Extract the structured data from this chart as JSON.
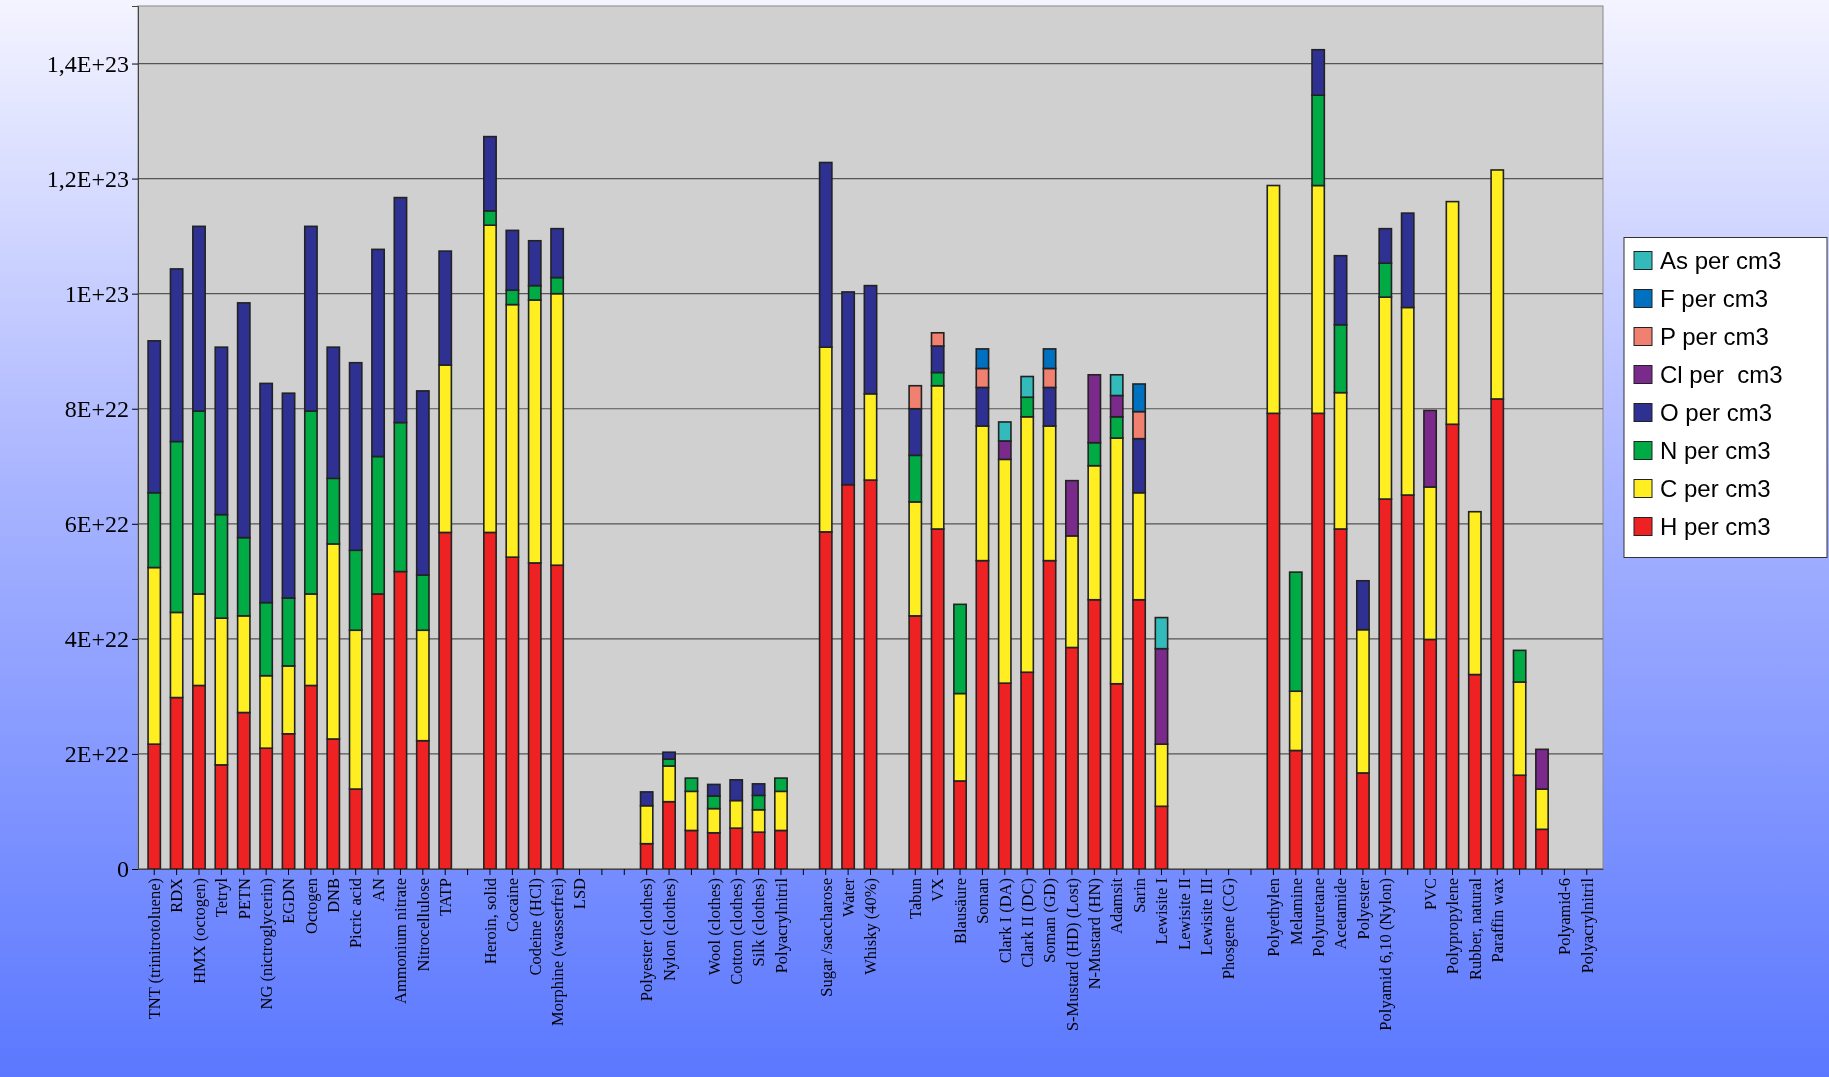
{
  "chart_data": {
    "type": "bar",
    "stacked": true,
    "grid": "y",
    "legend": "right",
    "categories": [
      "TNT (trinitrotoluene)",
      "RDX",
      "HMX (octogen)",
      "Tetryl",
      "PETN",
      "NG (nictroglycerin)",
      "EGDN",
      "Octogen",
      "DNB",
      "Picric acid",
      "AN",
      "Ammonium nitrate",
      "Nitrocellulose",
      "TATP",
      null,
      "Heroin, solid",
      "Cocaine",
      "Codeine (HCl)",
      "Morphine (wasserfrei)",
      "LSD",
      null,
      null,
      "Polyester (clothes)",
      "Nylon (clothes)",
      null,
      "Wool (clothes)",
      "Cotton (clothes)",
      "Silk (clothes)",
      "Polyacrylnitril",
      null,
      "Sugar /saccharose",
      "Water",
      "Whisky (40%)",
      null,
      "Tabun",
      "VX",
      "Blausäure",
      "Soman",
      "Clark I (DA)",
      "Clark II (DC)",
      "Soman (GD)",
      "S-Mustard (HD) (Lost)",
      "N-Mustard (HN)",
      "Adamsit",
      "Sarin",
      "Lewisite I",
      "Lewisite II",
      "Lewisite III",
      "Phosgene (CG)",
      null,
      "Polyethylen",
      "Melamine",
      "Polyuretane",
      "Acetamide",
      "Polyester",
      "Polyamid 6,10 (Nylon)",
      null,
      "PVC",
      "Polypropylene",
      "Rubber, natural",
      "Paraffin wax",
      null,
      null,
      "Polyamid-6",
      "Polyacrylnitril"
    ],
    "ylim": [
      0,
      1.5e+23
    ],
    "yticks": [
      0,
      {
        "value": 2e+22,
        "label": "2E+22"
      },
      {
        "value": 4e+22,
        "label": "4E+22"
      },
      {
        "value": 6e+22,
        "label": "6E+22"
      },
      {
        "value": 8e+22,
        "label": "8E+22"
      },
      {
        "value": 1e+23,
        "label": "1E+23"
      },
      {
        "value": 1.2e+23,
        "label": "1,2E+23"
      },
      {
        "value": 1.4e+23,
        "label": "1,4E+23"
      }
    ],
    "series": [
      {
        "name": "H per cm3",
        "color": "#ee2222",
        "values": [
          2.17e+22,
          2.98e+22,
          3.19e+22,
          1.81e+22,
          2.72e+22,
          2.1e+22,
          2.35e+22,
          3.19e+22,
          2.26e+22,
          1.39e+22,
          4.78e+22,
          5.17e+22,
          2.23e+22,
          5.85e+22,
          null,
          5.85e+22,
          5.42e+22,
          5.32e+22,
          5.28e+22,
          null,
          null,
          null,
          4.4e+21,
          1.17e+22,
          6.7e+21,
          6.3e+21,
          7.1e+21,
          6.4e+21,
          6.7e+21,
          null,
          5.86e+22,
          6.68e+22,
          6.76e+22,
          null,
          4.4e+22,
          5.91e+22,
          1.53e+22,
          5.36e+22,
          3.23e+22,
          3.42e+22,
          5.36e+22,
          3.85e+22,
          4.68e+22,
          3.22e+22,
          4.68e+22,
          1.09e+22,
          null,
          null,
          null,
          null,
          7.92e+22,
          2.06e+22,
          7.92e+22,
          5.91e+22,
          1.67e+22,
          6.43e+22,
          6.5e+22,
          3.99e+22,
          7.73e+22,
          3.38e+22,
          8.17e+22,
          1.63e+22,
          6.9e+21,
          null,
          null
        ]
      },
      {
        "name": "C per cm3",
        "color": "#ffee22",
        "values": [
          3.07e+22,
          1.48e+22,
          1.59e+22,
          2.55e+22,
          1.68e+22,
          1.26e+22,
          1.18e+22,
          1.59e+22,
          3.39e+22,
          2.76e+22,
          null,
          null,
          1.92e+22,
          2.91e+22,
          null,
          5.34e+22,
          4.39e+22,
          4.57e+22,
          4.72e+22,
          null,
          null,
          null,
          6.6e+21,
          6.2e+21,
          6.8e+21,
          4.2e+21,
          4.8e+21,
          3.9e+21,
          6.8e+21,
          null,
          3.21e+22,
          null,
          1.5e+22,
          null,
          1.98e+22,
          2.49e+22,
          1.52e+22,
          2.34e+22,
          3.89e+22,
          4.44e+22,
          2.34e+22,
          1.94e+22,
          2.33e+22,
          4.27e+22,
          1.86e+22,
          1.08e+22,
          null,
          null,
          null,
          null,
          3.96e+22,
          1.03e+22,
          3.96e+22,
          2.37e+22,
          2.49e+22,
          3.51e+22,
          3.26e+22,
          2.65e+22,
          3.87e+22,
          2.83e+22,
          3.98e+22,
          1.62e+22,
          7e+21,
          null,
          null
        ]
      },
      {
        "name": "N per cm3",
        "color": "#00aa44",
        "values": [
          1.3e+22,
          2.97e+22,
          3.18e+22,
          1.8e+22,
          1.36e+22,
          1.27e+22,
          1.18e+22,
          3.18e+22,
          1.14e+22,
          1.39e+22,
          2.39e+22,
          2.59e+22,
          9.6e+21,
          null,
          null,
          2.5e+21,
          2.5e+21,
          2.5e+21,
          2.8e+21,
          null,
          null,
          null,
          null,
          1.2e+21,
          2.3e+21,
          2.2e+21,
          null,
          2.5e+21,
          2.3e+21,
          null,
          null,
          null,
          null,
          null,
          8.1e+21,
          2.3e+21,
          1.55e+22,
          null,
          null,
          3.4e+21,
          null,
          null,
          4e+21,
          3.7e+21,
          null,
          null,
          null,
          null,
          null,
          null,
          null,
          2.07e+22,
          1.57e+22,
          1.18e+22,
          null,
          5.9e+21,
          null,
          null,
          null,
          null,
          null,
          5.5e+21,
          null,
          null,
          null
        ]
      },
      {
        "name": "O per cm3",
        "color": "#2e3192",
        "values": [
          2.64e+22,
          3e+22,
          3.21e+22,
          2.91e+22,
          4.08e+22,
          3.81e+22,
          3.56e+22,
          3.21e+22,
          2.28e+22,
          3.26e+22,
          3.6e+22,
          3.91e+22,
          3.2e+22,
          1.98e+22,
          null,
          1.29e+22,
          1.04e+22,
          7.8e+21,
          8.5e+21,
          null,
          null,
          null,
          2.4e+21,
          1.2e+21,
          null,
          2e+21,
          3.6e+21,
          2e+21,
          null,
          null,
          3.21e+22,
          3.35e+22,
          1.88e+22,
          null,
          8.1e+21,
          4.6e+21,
          null,
          6.7e+21,
          null,
          null,
          6.7e+21,
          null,
          null,
          null,
          9.4e+21,
          null,
          null,
          null,
          null,
          null,
          null,
          null,
          7.9e+21,
          1.2e+22,
          8.5e+21,
          6e+21,
          1.64e+22,
          null,
          null,
          null,
          null,
          null,
          null,
          null,
          null
        ]
      },
      {
        "name": "Cl per  cm3",
        "color": "#7a2a8a",
        "values": [
          null,
          null,
          null,
          null,
          null,
          null,
          null,
          null,
          null,
          null,
          null,
          null,
          null,
          null,
          null,
          null,
          null,
          null,
          null,
          null,
          null,
          null,
          null,
          null,
          null,
          null,
          null,
          null,
          null,
          null,
          null,
          null,
          null,
          null,
          null,
          null,
          null,
          null,
          3.2e+21,
          null,
          null,
          9.6e+21,
          1.18e+22,
          3.7e+21,
          null,
          1.66e+22,
          null,
          null,
          null,
          null,
          null,
          null,
          null,
          null,
          null,
          null,
          null,
          1.33e+22,
          null,
          null,
          null,
          null,
          6.9e+21,
          null,
          null
        ]
      },
      {
        "name": "P per cm3",
        "color": "#f08070",
        "values": [
          null,
          null,
          null,
          null,
          null,
          null,
          null,
          null,
          null,
          null,
          null,
          null,
          null,
          null,
          null,
          null,
          null,
          null,
          null,
          null,
          null,
          null,
          null,
          null,
          null,
          null,
          null,
          null,
          null,
          null,
          null,
          null,
          null,
          null,
          4e+21,
          2.3e+21,
          null,
          3.3e+21,
          null,
          null,
          3.3e+21,
          null,
          null,
          null,
          4.7e+21,
          null,
          null,
          null,
          null,
          null,
          null,
          null,
          null,
          null,
          null,
          null,
          null,
          null,
          null,
          null,
          null,
          null,
          null,
          null,
          null
        ]
      },
      {
        "name": "F per cm3",
        "color": "#0070c0",
        "values": [
          null,
          null,
          null,
          null,
          null,
          null,
          null,
          null,
          null,
          null,
          null,
          null,
          null,
          null,
          null,
          null,
          null,
          null,
          null,
          null,
          null,
          null,
          null,
          null,
          null,
          null,
          null,
          null,
          null,
          null,
          null,
          null,
          null,
          null,
          null,
          null,
          null,
          3.4e+21,
          null,
          null,
          3.4e+21,
          null,
          null,
          null,
          4.8e+21,
          null,
          null,
          null,
          null,
          null,
          null,
          null,
          null,
          null,
          null,
          null,
          null,
          null,
          null,
          null,
          null,
          null,
          null,
          null,
          null
        ]
      },
      {
        "name": "As per cm3",
        "color": "#33bbbb",
        "values": [
          null,
          null,
          null,
          null,
          null,
          null,
          null,
          null,
          null,
          null,
          null,
          null,
          null,
          null,
          null,
          null,
          null,
          null,
          null,
          null,
          null,
          null,
          null,
          null,
          null,
          null,
          null,
          null,
          null,
          null,
          null,
          null,
          null,
          null,
          null,
          null,
          null,
          null,
          3.3e+21,
          3.6e+21,
          null,
          null,
          null,
          3.6e+21,
          null,
          5.4e+21,
          null,
          null,
          null,
          null,
          null,
          null,
          null,
          null,
          null,
          null,
          null,
          null,
          null,
          null,
          null,
          null,
          null,
          null,
          null
        ]
      }
    ]
  }
}
